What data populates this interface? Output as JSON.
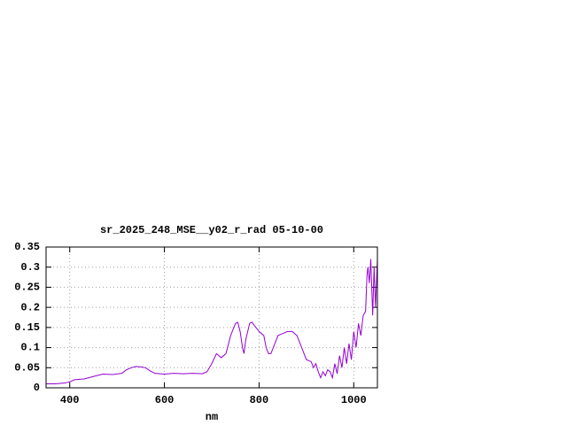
{
  "chart_data": {
    "type": "line",
    "title": "sr_2025_248_MSE__y02_r_rad 05-10-00",
    "x_label": "nm",
    "xlim": [
      350,
      1050
    ],
    "xticks": [
      400,
      600,
      800,
      1000
    ],
    "ylim": [
      0,
      0.35
    ],
    "yticks": [
      0,
      0.05,
      0.1,
      0.15,
      0.2,
      0.25,
      0.3,
      0.35
    ],
    "grid": true,
    "x": [
      350,
      370,
      390,
      400,
      410,
      430,
      450,
      470,
      490,
      510,
      520,
      530,
      540,
      550,
      560,
      570,
      580,
      600,
      620,
      640,
      660,
      680,
      690,
      700,
      710,
      720,
      730,
      740,
      750,
      755,
      760,
      765,
      768,
      772,
      780,
      785,
      790,
      800,
      810,
      815,
      820,
      825,
      830,
      840,
      850,
      860,
      870,
      880,
      890,
      900,
      910,
      915,
      920,
      925,
      930,
      935,
      940,
      945,
      950,
      955,
      960,
      965,
      970,
      975,
      980,
      985,
      990,
      995,
      1000,
      1005,
      1010,
      1015,
      1020,
      1025,
      1028,
      1030,
      1033,
      1036,
      1040,
      1043,
      1046,
      1050
    ],
    "series": [
      {
        "color": "#9400d3",
        "values": [
          0.01,
          0.01,
          0.012,
          0.015,
          0.02,
          0.022,
          0.028,
          0.034,
          0.033,
          0.036,
          0.045,
          0.05,
          0.053,
          0.052,
          0.05,
          0.042,
          0.036,
          0.034,
          0.036,
          0.035,
          0.036,
          0.035,
          0.04,
          0.06,
          0.085,
          0.075,
          0.085,
          0.13,
          0.16,
          0.163,
          0.14,
          0.1,
          0.085,
          0.12,
          0.16,
          0.163,
          0.155,
          0.14,
          0.13,
          0.1,
          0.085,
          0.085,
          0.1,
          0.13,
          0.135,
          0.14,
          0.14,
          0.13,
          0.1,
          0.07,
          0.065,
          0.05,
          0.06,
          0.04,
          0.025,
          0.04,
          0.03,
          0.045,
          0.04,
          0.025,
          0.06,
          0.035,
          0.08,
          0.05,
          0.1,
          0.06,
          0.11,
          0.07,
          0.14,
          0.1,
          0.16,
          0.13,
          0.18,
          0.19,
          0.28,
          0.3,
          0.26,
          0.32,
          0.18,
          0.3,
          0.2,
          0.32
        ]
      }
    ]
  }
}
